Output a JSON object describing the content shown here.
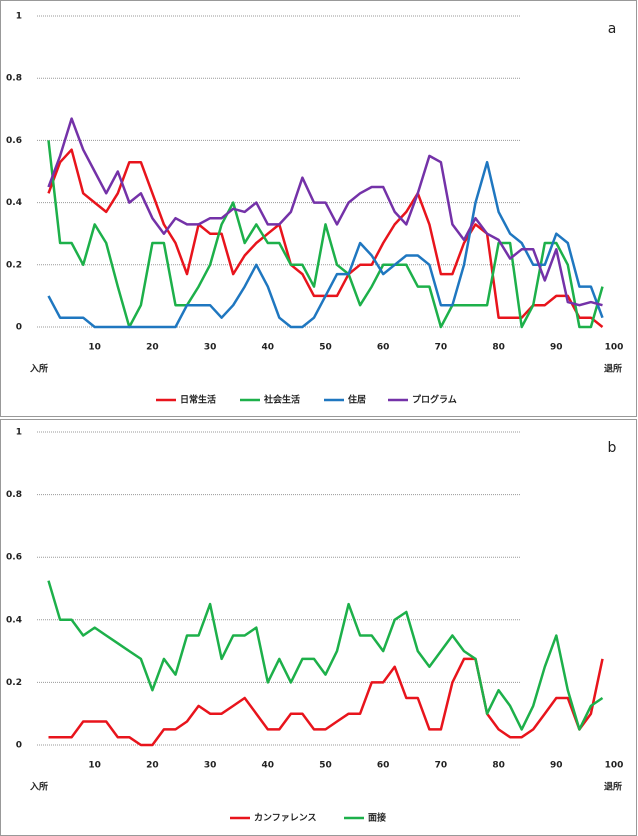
{
  "chart_data": [
    {
      "type": "line",
      "annotations": [
        "a",
        "入所",
        "退所"
      ],
      "x": [
        2,
        4,
        6,
        8,
        10,
        12,
        14,
        16,
        18,
        20,
        22,
        24,
        26,
        28,
        30,
        32,
        34,
        36,
        38,
        40,
        42,
        44,
        46,
        48,
        50,
        52,
        54,
        56,
        58,
        60,
        62,
        64,
        66,
        68,
        70,
        72,
        74,
        76,
        78,
        80,
        82,
        84,
        86,
        88,
        90,
        92,
        94,
        96,
        98
      ],
      "series": [
        {
          "name": "日常生活",
          "color": "#e8141c",
          "values": [
            0.43,
            0.53,
            0.57,
            0.43,
            0.4,
            0.37,
            0.43,
            0.53,
            0.53,
            0.43,
            0.33,
            0.27,
            0.17,
            0.33,
            0.3,
            0.3,
            0.17,
            0.23,
            0.27,
            0.3,
            0.33,
            0.2,
            0.17,
            0.1,
            0.1,
            0.1,
            0.17,
            0.2,
            0.2,
            0.27,
            0.33,
            0.37,
            0.43,
            0.33,
            0.17,
            0.17,
            0.27,
            0.33,
            0.3,
            0.03,
            0.03,
            0.03,
            0.07,
            0.07,
            0.1,
            0.1,
            0.03,
            0.03,
            0
          ]
        },
        {
          "name": "社会生活",
          "color": "#1db04a",
          "values": [
            0.6,
            0.27,
            0.27,
            0.2,
            0.33,
            0.27,
            0.13,
            0,
            0.07,
            0.27,
            0.27,
            0.07,
            0.07,
            0.13,
            0.2,
            0.33,
            0.4,
            0.27,
            0.33,
            0.27,
            0.27,
            0.2,
            0.2,
            0.13,
            0.33,
            0.2,
            0.17,
            0.07,
            0.13,
            0.2,
            0.2,
            0.2,
            0.13,
            0.13,
            0,
            0.07,
            0.07,
            0.07,
            0.07,
            0.27,
            0.27,
            0,
            0.07,
            0.27,
            0.27,
            0.2,
            0,
            0,
            0.13
          ]
        },
        {
          "name": "住居",
          "color": "#1f77c0",
          "values": [
            0.1,
            0.03,
            0.03,
            0.03,
            0,
            0,
            0,
            0,
            0,
            0,
            0,
            0,
            0.07,
            0.07,
            0.07,
            0.03,
            0.07,
            0.13,
            0.2,
            0.13,
            0.03,
            0,
            0,
            0.03,
            0.1,
            0.17,
            0.17,
            0.27,
            0.23,
            0.17,
            0.2,
            0.23,
            0.23,
            0.2,
            0.07,
            0.07,
            0.2,
            0.4,
            0.53,
            0.37,
            0.3,
            0.27,
            0.2,
            0.2,
            0.3,
            0.27,
            0.13,
            0.13,
            0.03
          ]
        },
        {
          "name": "プログラム",
          "color": "#7432a8",
          "values": [
            0.45,
            0.55,
            0.67,
            0.57,
            0.5,
            0.43,
            0.5,
            0.4,
            0.43,
            0.35,
            0.3,
            0.35,
            0.33,
            0.33,
            0.35,
            0.35,
            0.38,
            0.37,
            0.4,
            0.33,
            0.33,
            0.37,
            0.48,
            0.4,
            0.4,
            0.33,
            0.4,
            0.43,
            0.45,
            0.45,
            0.37,
            0.33,
            0.43,
            0.55,
            0.53,
            0.33,
            0.28,
            0.35,
            0.3,
            0.28,
            0.22,
            0.25,
            0.25,
            0.15,
            0.25,
            0.08,
            0.07,
            0.08,
            0.07
          ]
        }
      ],
      "xlim": [
        0,
        100
      ],
      "xticks": [
        10,
        20,
        30,
        40,
        50,
        60,
        70,
        80,
        90,
        100
      ],
      "ylim": [
        0,
        1
      ],
      "yticks": [
        0,
        0.2,
        0.4,
        0.6,
        0.8,
        1
      ],
      "grid": true,
      "legend": "bottom"
    },
    {
      "type": "line",
      "annotations": [
        "b",
        "入所",
        "退所"
      ],
      "x": [
        2,
        4,
        6,
        8,
        10,
        12,
        14,
        16,
        18,
        20,
        22,
        24,
        26,
        28,
        30,
        32,
        34,
        36,
        38,
        40,
        42,
        44,
        46,
        48,
        50,
        52,
        54,
        56,
        58,
        60,
        62,
        64,
        66,
        68,
        70,
        72,
        74,
        76,
        78,
        80,
        82,
        84,
        86,
        88,
        90,
        92,
        94,
        96,
        98
      ],
      "series": [
        {
          "name": "カンファレンス",
          "color": "#e8141c",
          "values": [
            0.025,
            0.025,
            0.025,
            0.075,
            0.075,
            0.075,
            0.025,
            0.025,
            0,
            0,
            0.05,
            0.05,
            0.075,
            0.125,
            0.1,
            0.1,
            0.125,
            0.15,
            0.1,
            0.05,
            0.05,
            0.1,
            0.1,
            0.05,
            0.05,
            0.075,
            0.1,
            0.1,
            0.2,
            0.2,
            0.25,
            0.15,
            0.15,
            0.05,
            0.05,
            0.2,
            0.275,
            0.275,
            0.1,
            0.05,
            0.025,
            0.025,
            0.05,
            0.1,
            0.15,
            0.15,
            0.05,
            0.1,
            0.275
          ]
        },
        {
          "name": "面接",
          "color": "#1db04a",
          "values": [
            0.525,
            0.4,
            0.4,
            0.35,
            0.375,
            0.35,
            0.325,
            0.3,
            0.275,
            0.175,
            0.275,
            0.225,
            0.35,
            0.35,
            0.45,
            0.275,
            0.35,
            0.35,
            0.375,
            0.2,
            0.275,
            0.2,
            0.275,
            0.275,
            0.225,
            0.3,
            0.45,
            0.35,
            0.35,
            0.3,
            0.4,
            0.425,
            0.3,
            0.25,
            0.3,
            0.35,
            0.3,
            0.275,
            0.1,
            0.175,
            0.125,
            0.05,
            0.125,
            0.25,
            0.35,
            0.175,
            0.05,
            0.125,
            0.15
          ]
        }
      ],
      "xlim": [
        0,
        100
      ],
      "xticks": [
        10,
        20,
        30,
        40,
        50,
        60,
        70,
        80,
        90,
        100
      ],
      "ylim": [
        0,
        1
      ],
      "yticks": [
        0,
        0.2,
        0.4,
        0.6,
        0.8,
        1
      ],
      "grid": true,
      "legend": "bottom"
    }
  ]
}
